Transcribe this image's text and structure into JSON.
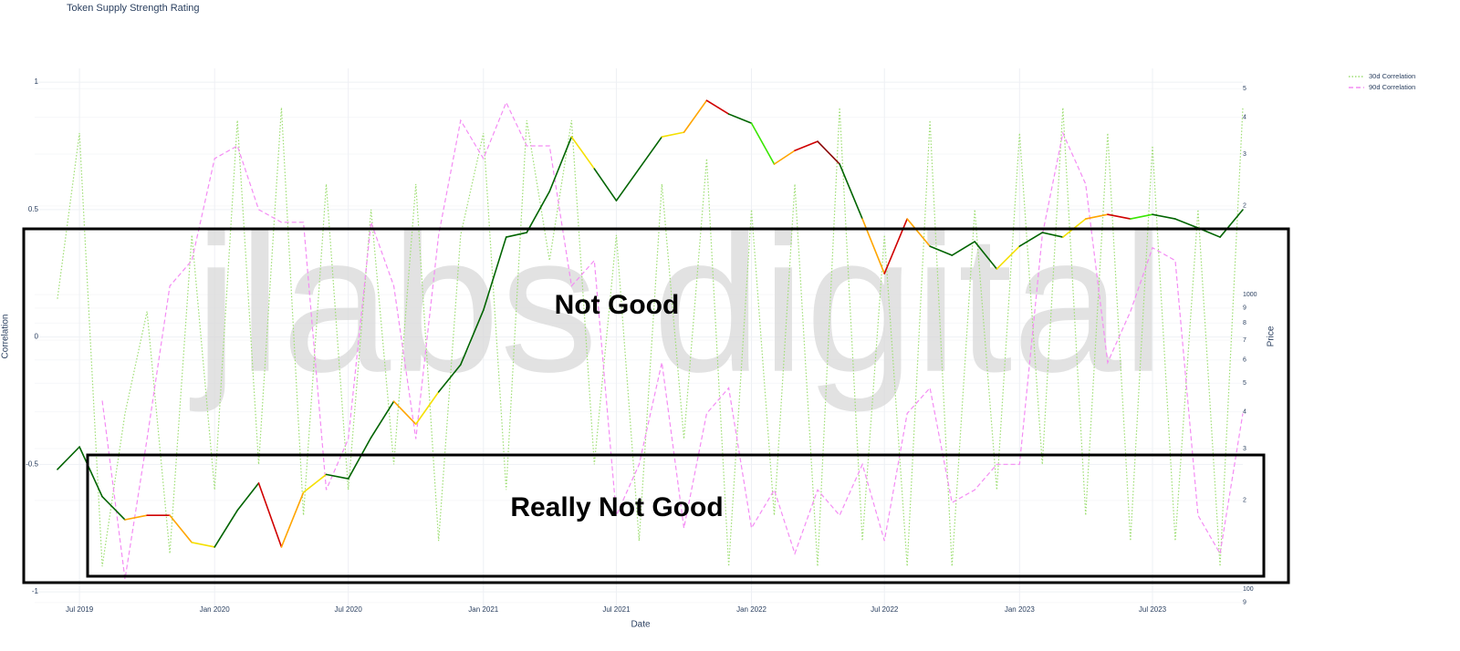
{
  "chart_data": {
    "type": "line",
    "title": "Token Supply Strength Rating",
    "xlabel": "Date",
    "ylabel": "Correlation",
    "y2label": "Price",
    "watermark": "jlabs digital",
    "annotations": [
      "Not Good",
      "Really Not Good"
    ],
    "x": [
      "2019-06",
      "2019-07",
      "2019-08",
      "2019-09",
      "2019-10",
      "2019-11",
      "2019-12",
      "2020-01",
      "2020-02",
      "2020-03",
      "2020-04",
      "2020-05",
      "2020-06",
      "2020-07",
      "2020-08",
      "2020-09",
      "2020-10",
      "2020-11",
      "2020-12",
      "2021-01",
      "2021-02",
      "2021-03",
      "2021-04",
      "2021-05",
      "2021-06",
      "2021-07",
      "2021-08",
      "2021-09",
      "2021-10",
      "2021-11",
      "2021-12",
      "2022-01",
      "2022-02",
      "2022-03",
      "2022-04",
      "2022-05",
      "2022-06",
      "2022-07",
      "2022-08",
      "2022-09",
      "2022-10",
      "2022-11",
      "2022-12",
      "2023-01",
      "2023-02",
      "2023-03",
      "2023-04",
      "2023-05",
      "2023-06",
      "2023-07",
      "2023-08",
      "2023-09",
      "2023-10",
      "2023-11"
    ],
    "xlim": [
      "2019-05",
      "2023-11"
    ],
    "xticks": [
      {
        "value": "2019-07",
        "label": "Jul 2019"
      },
      {
        "value": "2020-01",
        "label": "Jan 2020"
      },
      {
        "value": "2020-07",
        "label": "Jul 2020"
      },
      {
        "value": "2021-01",
        "label": "Jan 2021"
      },
      {
        "value": "2021-07",
        "label": "Jul 2021"
      },
      {
        "value": "2022-01",
        "label": "Jan 2022"
      },
      {
        "value": "2022-07",
        "label": "Jul 2022"
      },
      {
        "value": "2023-01",
        "label": "Jan 2023"
      },
      {
        "value": "2023-07",
        "label": "Jul 2023"
      }
    ],
    "ylim": [
      -1.057,
      1.054
    ],
    "yticks": [
      -1,
      -0.5,
      0,
      0.5,
      1
    ],
    "y2lim": [
      87.4,
      5861
    ],
    "y2scale": "log",
    "y2ticks": [
      {
        "value": 90,
        "label": "9"
      },
      100,
      {
        "value": 200,
        "label": "2"
      },
      {
        "value": 300,
        "label": "3"
      },
      {
        "value": 400,
        "label": "4"
      },
      {
        "value": 500,
        "label": "5"
      },
      {
        "value": 600,
        "label": "6"
      },
      {
        "value": 700,
        "label": "7"
      },
      {
        "value": 800,
        "label": "8"
      },
      {
        "value": 900,
        "label": "9"
      },
      1000,
      {
        "value": 2000,
        "label": "2"
      },
      {
        "value": 3000,
        "label": "3"
      },
      {
        "value": 4000,
        "label": "4"
      },
      {
        "value": 5000,
        "label": "5"
      }
    ],
    "grid": true,
    "legend": "top-right",
    "series": [
      {
        "name": "30d Correlation",
        "color": "#9ede73",
        "dash": "dotted",
        "values": [
          0.15,
          0.8,
          -0.9,
          -0.3,
          0.1,
          -0.85,
          0.4,
          -0.6,
          0.85,
          -0.5,
          0.9,
          -0.7,
          0.6,
          -0.6,
          0.5,
          -0.5,
          0.6,
          -0.8,
          0.4,
          0.8,
          -0.6,
          0.85,
          0.3,
          0.85,
          -0.5,
          0.4,
          -0.8,
          0.6,
          -0.4,
          0.7,
          -0.9,
          0.5,
          -0.7,
          0.6,
          -0.9,
          0.9,
          -0.8,
          0.4,
          -0.9,
          0.85,
          -0.9,
          0.5,
          -0.6,
          0.8,
          -0.5,
          0.9,
          -0.7,
          0.8,
          -0.8,
          0.75,
          -0.8,
          0.5,
          -0.9,
          0.9
        ]
      },
      {
        "name": "90d Correlation",
        "color": "#f48cf4",
        "dash": "dashed",
        "values": [
          null,
          null,
          -0.25,
          -0.95,
          -0.4,
          0.2,
          0.3,
          0.7,
          0.75,
          0.5,
          0.45,
          0.45,
          -0.6,
          -0.4,
          0.45,
          0.2,
          -0.4,
          0.4,
          0.85,
          0.7,
          0.92,
          0.75,
          0.75,
          0.2,
          0.3,
          -0.7,
          -0.5,
          -0.1,
          -0.75,
          -0.3,
          -0.2,
          -0.75,
          -0.6,
          -0.85,
          -0.6,
          -0.7,
          -0.5,
          -0.8,
          -0.3,
          -0.2,
          -0.65,
          -0.6,
          -0.5,
          -0.5,
          0.4,
          0.8,
          0.6,
          -0.1,
          0.1,
          0.35,
          0.3,
          -0.7,
          -0.85,
          -0.3
        ]
      },
      {
        "axis": "y2",
        "color": "#006400",
        "values": [
          255,
          304,
          206,
          172,
          178,
          178,
          144,
          139,
          185,
          229,
          139,
          213,
          245,
          237,
          327,
          434,
          363,
          467,
          578,
          885,
          1567,
          1624,
          2239,
          3433,
          2675,
          2084,
          2675,
          3433,
          3556,
          4560,
          4102,
          3819,
          2773,
          3083,
          3311,
          2773,
          1807,
          1178,
          1807,
          1459,
          1359,
          1513,
          1222,
          1459,
          1624,
          1567,
          1807,
          1871,
          1807,
          1871,
          1807,
          1683,
          1567,
          1941
        ],
        "segment_colors": [
          "#006400",
          "#006400",
          "#006400",
          "orange",
          "#d00000",
          "orange",
          "#f5e000",
          "#006400",
          "#006400",
          "#d00000",
          "orange",
          "#f5e000",
          "#006400",
          "#006400",
          "#006400",
          "orange",
          "#f5e000",
          "#006400",
          "#006400",
          "#006400",
          "#006400",
          "#006400",
          "#006400",
          "#f5e000",
          "#006400",
          "#006400",
          "#006400",
          "#f5e000",
          "orange",
          "#d00000",
          "#006400",
          "#39e600",
          "orange",
          "#d00000",
          "#8b0000",
          "#006400",
          "orange",
          "#d00000",
          "orange",
          "#006400",
          "#006400",
          "#006400",
          "#f5e000",
          "#006400",
          "#006400",
          "#f5e000",
          "orange",
          "#d00000",
          "#39e600",
          "#006400",
          "#006400",
          "#006400",
          "#006400"
        ]
      }
    ]
  }
}
